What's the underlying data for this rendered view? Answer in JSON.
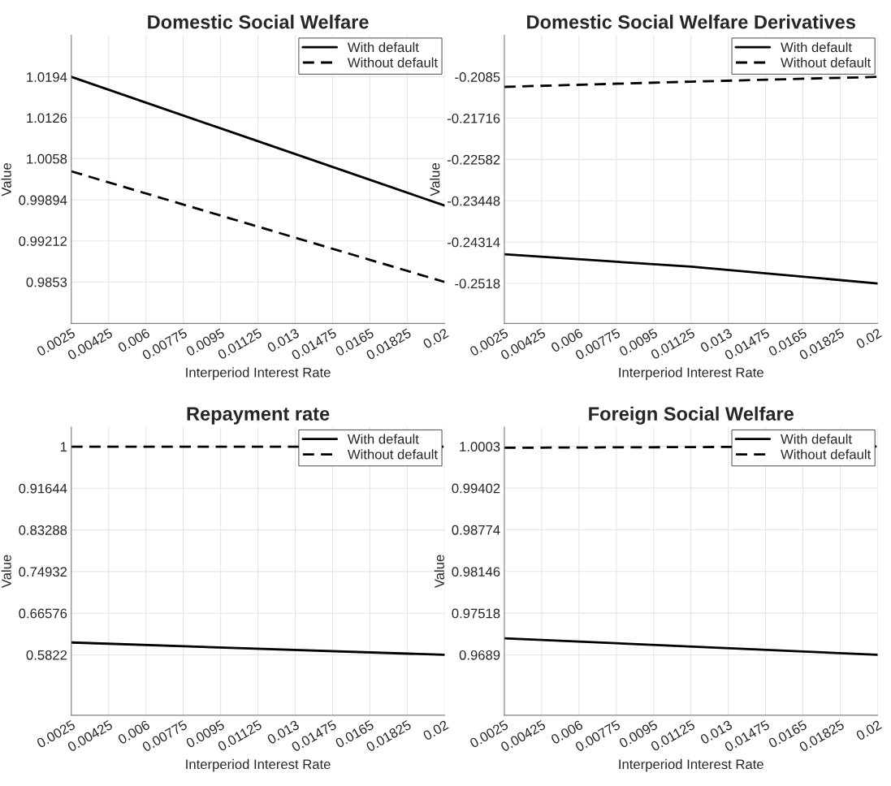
{
  "chart_data": [
    {
      "type": "line",
      "title": "Domestic Social Welfare",
      "xlabel": "Interperiod Interest Rate",
      "ylabel": "Value",
      "x": [
        0.0025,
        0.01125,
        0.02
      ],
      "xlim": [
        0.0025,
        0.02
      ],
      "xticks": [
        0.0025,
        0.00425,
        0.006,
        0.00775,
        0.0095,
        0.01125,
        0.013,
        0.01475,
        0.0165,
        0.01825,
        0.02
      ],
      "ylim": [
        0.9784,
        1.0263
      ],
      "yticks": [
        0.9853,
        0.99212,
        0.99894,
        1.0058,
        1.0126,
        1.0194
      ],
      "grid": true,
      "legend": "top right",
      "series": [
        {
          "name": "With default",
          "color": "#000000",
          "line_style": "solid",
          "values": [
            1.0194,
            1.0087,
            0.998
          ]
        },
        {
          "name": "Without default",
          "color": "#000000",
          "line_style": "dashed",
          "values": [
            1.0037,
            0.9945,
            0.9853
          ]
        }
      ]
    },
    {
      "type": "line",
      "title": "Domestic Social Welfare Derivatives",
      "xlabel": "Interperiod Interest Rate",
      "ylabel": "Value",
      "x": [
        0.0025,
        0.01125,
        0.02
      ],
      "xlim": [
        0.0025,
        0.02
      ],
      "xticks": [
        0.0025,
        0.00425,
        0.006,
        0.00775,
        0.0095,
        0.01125,
        0.013,
        0.01475,
        0.0165,
        0.01825,
        0.02
      ],
      "ylim": [
        -0.2602,
        -0.1998
      ],
      "yticks": [
        -0.2518,
        -0.24314,
        -0.23448,
        -0.22582,
        -0.21716,
        -0.2085
      ],
      "grid": true,
      "legend": "top right",
      "series": [
        {
          "name": "With default",
          "color": "#000000",
          "line_style": "solid",
          "values": [
            -0.2457,
            -0.2483,
            -0.2518
          ]
        },
        {
          "name": "Without default",
          "color": "#000000",
          "line_style": "dashed",
          "values": [
            -0.2106,
            -0.2095,
            -0.2085
          ]
        }
      ]
    },
    {
      "type": "line",
      "title": "Repayment rate",
      "xlabel": "Interperiod Interest Rate",
      "ylabel": "Value",
      "x": [
        0.0025,
        0.02
      ],
      "xlim": [
        0.0025,
        0.02
      ],
      "xticks": [
        0.0025,
        0.00425,
        0.006,
        0.00775,
        0.0095,
        0.01125,
        0.013,
        0.01475,
        0.0165,
        0.01825,
        0.02
      ],
      "ylim": [
        0.461,
        1.039
      ],
      "yticks": [
        0.5822,
        0.66576,
        0.74932,
        0.83288,
        0.91644,
        1
      ],
      "grid": true,
      "legend": "top right",
      "series": [
        {
          "name": "With default",
          "color": "#000000",
          "line_style": "solid",
          "values": [
            0.607,
            0.5822
          ]
        },
        {
          "name": "Without default",
          "color": "#000000",
          "line_style": "dashed",
          "values": [
            1,
            1
          ]
        }
      ]
    },
    {
      "type": "line",
      "title": "Foreign Social Welfare",
      "xlabel": "Interperiod Interest Rate",
      "ylabel": "Value",
      "x": [
        0.0025,
        0.02
      ],
      "xlim": [
        0.0025,
        0.02
      ],
      "xticks": [
        0.0025,
        0.00425,
        0.006,
        0.00775,
        0.0095,
        0.01125,
        0.013,
        0.01475,
        0.0165,
        0.01825,
        0.02
      ],
      "ylim": [
        0.9598,
        1.0032
      ],
      "yticks": [
        0.9689,
        0.97518,
        0.98146,
        0.98774,
        0.99402,
        1.0003
      ],
      "grid": true,
      "legend": "top right",
      "series": [
        {
          "name": "With default",
          "color": "#000000",
          "line_style": "solid",
          "values": [
            0.9714,
            0.9689
          ]
        },
        {
          "name": "Without default",
          "color": "#000000",
          "line_style": "dashed",
          "values": [
            1.0001,
            1.0003
          ]
        }
      ]
    }
  ]
}
